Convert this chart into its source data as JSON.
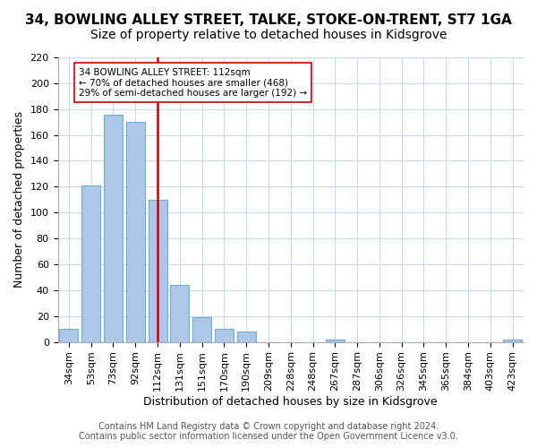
{
  "title": "34, BOWLING ALLEY STREET, TALKE, STOKE-ON-TRENT, ST7 1GA",
  "subtitle": "Size of property relative to detached houses in Kidsgrove",
  "xlabel": "Distribution of detached houses by size in Kidsgrove",
  "ylabel": "Number of detached properties",
  "categories": [
    "34sqm",
    "53sqm",
    "73sqm",
    "92sqm",
    "112sqm",
    "131sqm",
    "151sqm",
    "170sqm",
    "190sqm",
    "209sqm",
    "228sqm",
    "248sqm",
    "267sqm",
    "287sqm",
    "306sqm",
    "326sqm",
    "345sqm",
    "365sqm",
    "384sqm",
    "403sqm",
    "423sqm"
  ],
  "values": [
    10,
    121,
    176,
    170,
    110,
    44,
    19,
    10,
    8,
    0,
    0,
    0,
    2,
    0,
    0,
    0,
    0,
    0,
    0,
    0,
    2
  ],
  "bar_color": "#aec6e8",
  "bar_edge_color": "#6aaed6",
  "vline_x": 4,
  "vline_color": "#cc0000",
  "ylim": [
    0,
    220
  ],
  "yticks": [
    0,
    20,
    40,
    60,
    80,
    100,
    120,
    140,
    160,
    180,
    200,
    220
  ],
  "annotation_title": "34 BOWLING ALLEY STREET: 112sqm",
  "annotation_line1": "← 70% of detached houses are smaller (468)",
  "annotation_line2": "29% of semi-detached houses are larger (192) →",
  "footer_line1": "Contains HM Land Registry data © Crown copyright and database right 2024.",
  "footer_line2": "Contains public sector information licensed under the Open Government Licence v3.0.",
  "title_fontsize": 11,
  "subtitle_fontsize": 10,
  "axis_label_fontsize": 9,
  "tick_fontsize": 8,
  "footer_fontsize": 7
}
